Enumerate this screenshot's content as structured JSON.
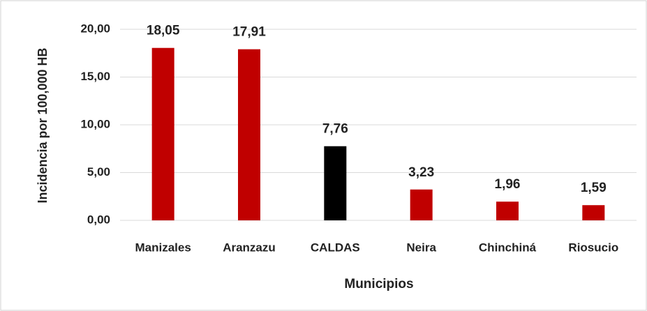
{
  "chart_data": {
    "type": "bar",
    "x_label": "Municipios",
    "y_label": "Incidencia por 100,000 HB",
    "categories": [
      "Manizales",
      "Aranzazu",
      "CALDAS",
      "Neira",
      "Chinchiná",
      "Riosucio"
    ],
    "values": [
      18.05,
      17.91,
      7.76,
      3.23,
      1.96,
      1.59
    ],
    "value_labels": [
      "18,05",
      "17,91",
      "7,76",
      "3,23",
      "1,96",
      "1,59"
    ],
    "colors": [
      "#c00000",
      "#c00000",
      "#000000",
      "#c00000",
      "#c00000",
      "#c00000"
    ],
    "ylim": [
      0,
      20
    ],
    "yticks": [
      {
        "value": 0,
        "label": "0,00"
      },
      {
        "value": 5,
        "label": "5,00"
      },
      {
        "value": 10,
        "label": "10,00"
      },
      {
        "value": 15,
        "label": "15,00"
      },
      {
        "value": 20,
        "label": "20,00"
      }
    ],
    "grid": true
  }
}
